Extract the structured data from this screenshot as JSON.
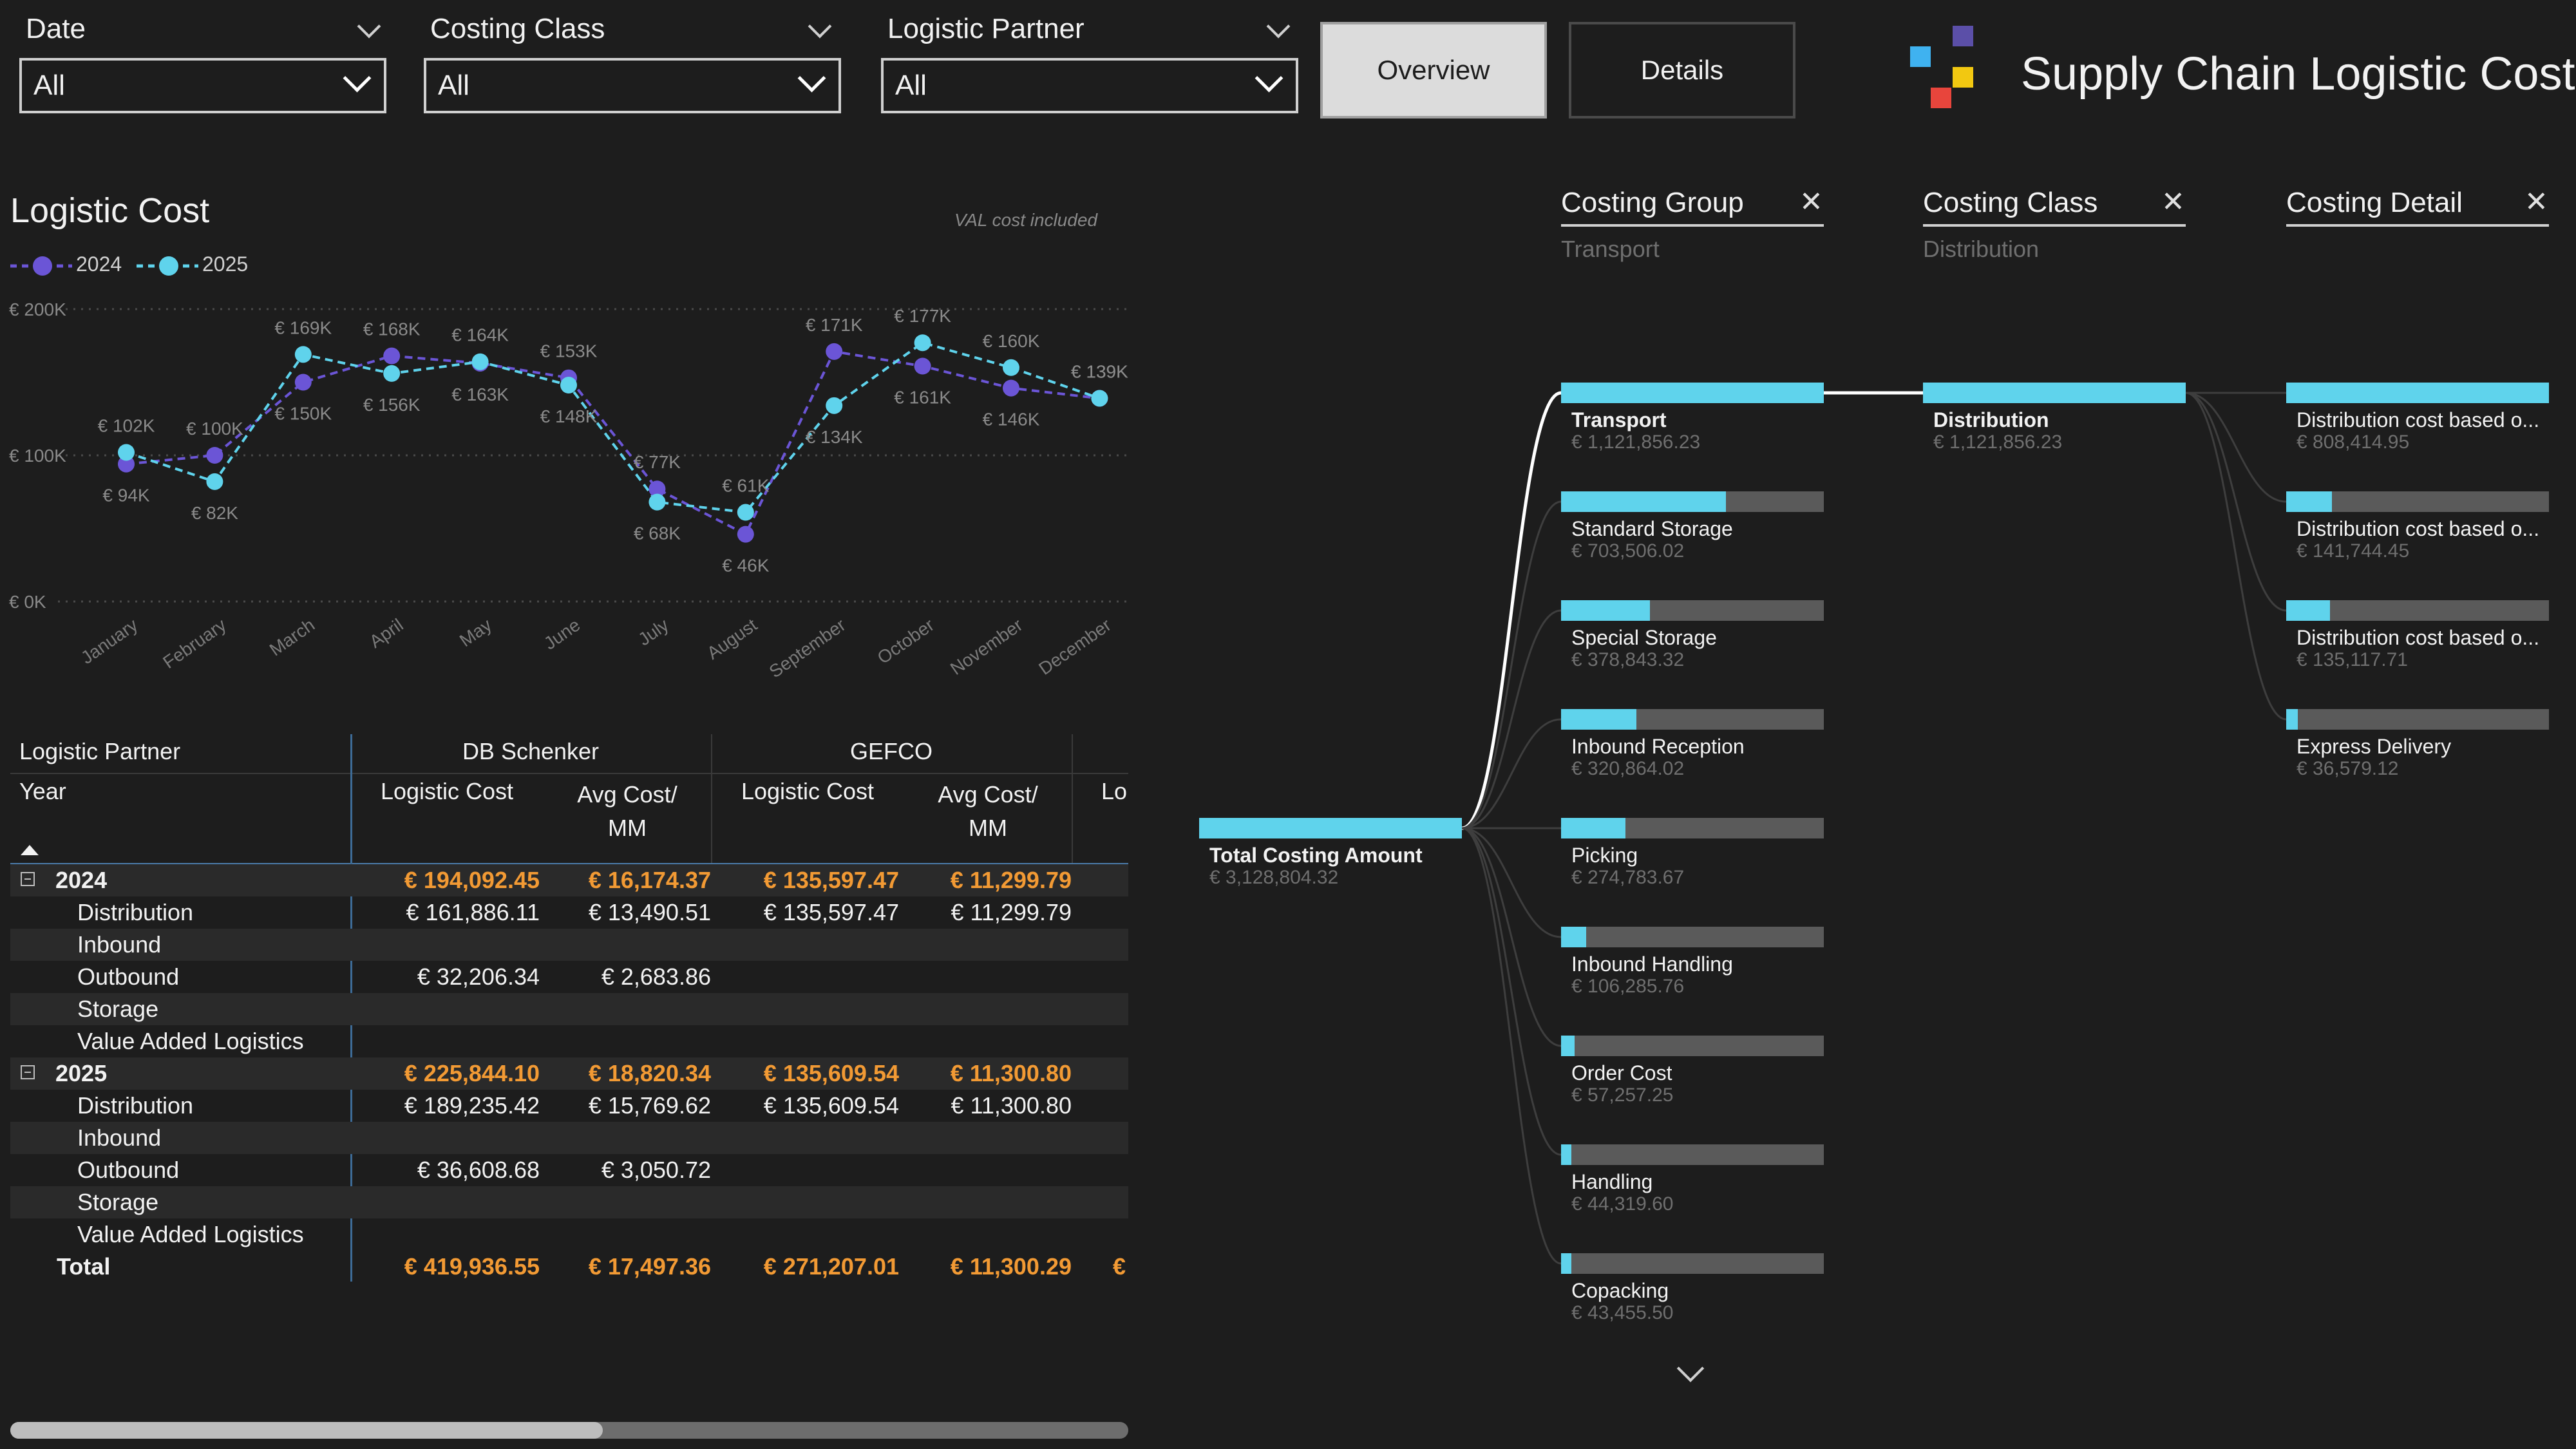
{
  "slicers": [
    {
      "label": "Date",
      "value": "All"
    },
    {
      "label": "Costing Class",
      "value": "All"
    },
    {
      "label": "Logistic Partner",
      "value": "All"
    }
  ],
  "nav": {
    "overview": "Overview",
    "details": "Details"
  },
  "app_title": "Supply Chain Logistic Cost",
  "brand_colors": {
    "blue": "#3fb2f0",
    "purple": "#5b4fa8",
    "yellow": "#f2c811",
    "red": "#e8453c"
  },
  "chart": {
    "title": "Logistic Cost",
    "note": "VAL cost included",
    "legend": [
      "2024",
      "2025"
    ]
  },
  "chart_data": {
    "type": "line",
    "x": [
      "January",
      "February",
      "March",
      "April",
      "May",
      "June",
      "July",
      "August",
      "September",
      "October",
      "November",
      "December"
    ],
    "series": [
      {
        "name": "2024",
        "color": "#6b55d6",
        "values": [
          94,
          100,
          150,
          168,
          163,
          153,
          77,
          46,
          171,
          161,
          146,
          139
        ],
        "labels": [
          "€ 94K",
          "€ 100K",
          "€ 150K",
          "€ 168K",
          "€ 163K",
          "€ 153K",
          "€ 77K",
          "€ 46K",
          "€ 171K",
          "€ 161K",
          "€ 146K",
          "€ 139K"
        ]
      },
      {
        "name": "2025",
        "color": "#5fd3ec",
        "values": [
          102,
          82,
          169,
          156,
          164,
          148,
          68,
          61,
          134,
          177,
          160,
          139
        ],
        "labels": [
          "€ 102K",
          "€ 82K",
          "€ 169K",
          "€ 156K",
          "€ 164K",
          "€ 148K",
          "€ 68K",
          "€ 61K",
          "€ 134K",
          "€ 177K",
          "€ 160K",
          "€ 139K"
        ]
      }
    ],
    "yticks": [
      "€ 0K",
      "€ 100K",
      "€ 200K"
    ],
    "ylim": [
      0,
      200
    ],
    "grid": true,
    "legend_position": "top-left"
  },
  "matrix": {
    "header_partner": "Logistic Partner",
    "header_year": "Year",
    "partners": [
      "DB Schenker",
      "GEFCO",
      "Lo"
    ],
    "measures": [
      "Logistic Cost",
      "Avg Cost/",
      "MM",
      "Logistic Cost",
      "Avg Cost/",
      "MM",
      "Lo"
    ],
    "rows": [
      {
        "label": "2024",
        "type": "year",
        "c1": "€ 194,092.45",
        "c2": "€ 16,174.37",
        "c3": "€ 135,597.47",
        "c4": "€ 11,299.79"
      },
      {
        "label": "Distribution",
        "type": "child",
        "c1": "€ 161,886.11",
        "c2": "€ 13,490.51",
        "c3": "€ 135,597.47",
        "c4": "€ 11,299.79"
      },
      {
        "label": "Inbound",
        "type": "child",
        "c1": "",
        "c2": "",
        "c3": "",
        "c4": ""
      },
      {
        "label": "Outbound",
        "type": "child",
        "c1": "€ 32,206.34",
        "c2": "€ 2,683.86",
        "c3": "",
        "c4": ""
      },
      {
        "label": "Storage",
        "type": "child",
        "c1": "",
        "c2": "",
        "c3": "",
        "c4": ""
      },
      {
        "label": "Value Added Logistics",
        "type": "child",
        "c1": "",
        "c2": "",
        "c3": "",
        "c4": ""
      },
      {
        "label": "2025",
        "type": "year",
        "c1": "€ 225,844.10",
        "c2": "€ 18,820.34",
        "c3": "€ 135,609.54",
        "c4": "€ 11,300.80"
      },
      {
        "label": "Distribution",
        "type": "child",
        "c1": "€ 189,235.42",
        "c2": "€ 15,769.62",
        "c3": "€ 135,609.54",
        "c4": "€ 11,300.80"
      },
      {
        "label": "Inbound",
        "type": "child",
        "c1": "",
        "c2": "",
        "c3": "",
        "c4": ""
      },
      {
        "label": "Outbound",
        "type": "child",
        "c1": "€ 36,608.68",
        "c2": "€ 3,050.72",
        "c3": "",
        "c4": ""
      },
      {
        "label": "Storage",
        "type": "child",
        "c1": "",
        "c2": "",
        "c3": "",
        "c4": ""
      },
      {
        "label": "Value Added Logistics",
        "type": "child",
        "c1": "",
        "c2": "",
        "c3": "",
        "c4": ""
      },
      {
        "label": "Total",
        "type": "total",
        "c1": "€ 419,936.55",
        "c2": "€ 17,497.36",
        "c3": "€ 271,207.01",
        "c4": "€ 11,300.29",
        "c5": "€"
      }
    ],
    "collapse_icon": "minus-box-icon",
    "scrollbar_fraction": 0.53
  },
  "decomp": {
    "columns": [
      {
        "title": "Costing Group",
        "sub": "Transport"
      },
      {
        "title": "Costing Class",
        "sub": "Distribution"
      },
      {
        "title": "Costing Detail",
        "sub": ""
      }
    ],
    "root": {
      "label": "Total Costing Amount",
      "value": "€ 3,128,804.32"
    },
    "groups": [
      {
        "label": "Transport",
        "value": "€ 1,121,856.23",
        "frac": 1.0
      },
      {
        "label": "Standard Storage",
        "value": "€ 703,506.02",
        "frac": 0.627
      },
      {
        "label": "Special Storage",
        "value": "€ 378,843.32",
        "frac": 0.338
      },
      {
        "label": "Inbound Reception",
        "value": "€ 320,864.02",
        "frac": 0.286
      },
      {
        "label": "Picking",
        "value": "€ 274,783.67",
        "frac": 0.245
      },
      {
        "label": "Inbound Handling",
        "value": "€ 106,285.76",
        "frac": 0.095
      },
      {
        "label": "Order Cost",
        "value": "€ 57,257.25",
        "frac": 0.051
      },
      {
        "label": "Handling",
        "value": "€ 44,319.60",
        "frac": 0.04
      },
      {
        "label": "Copacking",
        "value": "€ 43,455.50",
        "frac": 0.039
      }
    ],
    "classes": [
      {
        "label": "Distribution",
        "value": "€ 1,121,856.23",
        "frac": 1.0
      }
    ],
    "details": [
      {
        "label": "Distribution cost based o...",
        "value": "€ 808,414.95",
        "frac": 1.0
      },
      {
        "label": "Distribution cost based o...",
        "value": "€ 141,744.45",
        "frac": 0.175
      },
      {
        "label": "Distribution cost based o...",
        "value": "€ 135,117.71",
        "frac": 0.167
      },
      {
        "label": "Express Delivery",
        "value": "€ 36,579.12",
        "frac": 0.045
      }
    ]
  }
}
